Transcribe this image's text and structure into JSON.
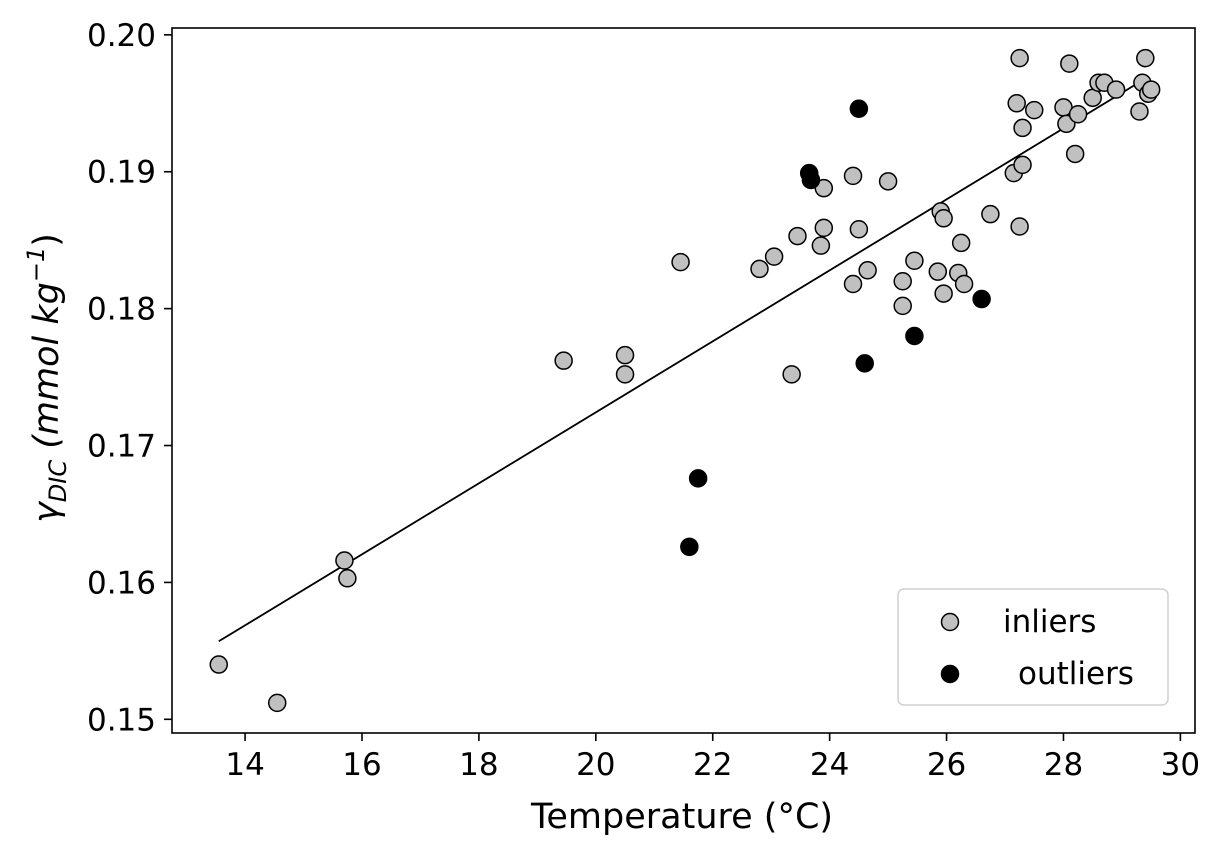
{
  "chart_data": {
    "type": "scatter",
    "xlabel": "Temperature (°C)",
    "ylabel": {
      "symbol": "γ",
      "subscript": "DIC",
      "unit_open": " (mmol kg",
      "unit_exp": "−1",
      "unit_close": ")"
    },
    "xlim": [
      12.75,
      30.25
    ],
    "ylim": [
      0.149,
      0.2005
    ],
    "xticks": [
      14,
      16,
      18,
      20,
      22,
      24,
      26,
      28,
      30
    ],
    "yticks": [
      0.15,
      0.16,
      0.17,
      0.18,
      0.19,
      0.2
    ],
    "ytick_labels": [
      "0.15",
      "0.16",
      "0.17",
      "0.18",
      "0.19",
      "0.20"
    ],
    "grid": false,
    "legend": {
      "position": "bottom-right",
      "entries": [
        "inliers",
        "outliers"
      ]
    },
    "colors": {
      "inliers": "#c0c0c0",
      "outliers": "#000000",
      "edge": "#000000",
      "fit_line": "#000000"
    },
    "fit_line": {
      "x": [
        13.55,
        29.4
      ],
      "y": [
        0.1557,
        0.1968
      ]
    },
    "series": [
      {
        "name": "inliers",
        "points": [
          [
            13.55,
            0.154
          ],
          [
            14.55,
            0.1512
          ],
          [
            15.7,
            0.1616
          ],
          [
            15.75,
            0.1603
          ],
          [
            19.45,
            0.1762
          ],
          [
            20.5,
            0.1766
          ],
          [
            20.5,
            0.1752
          ],
          [
            21.45,
            0.1834
          ],
          [
            22.8,
            0.1829
          ],
          [
            23.05,
            0.1838
          ],
          [
            23.35,
            0.1752
          ],
          [
            23.45,
            0.1853
          ],
          [
            23.85,
            0.1846
          ],
          [
            23.9,
            0.1888
          ],
          [
            23.9,
            0.1859
          ],
          [
            24.4,
            0.1897
          ],
          [
            24.4,
            0.1818
          ],
          [
            24.5,
            0.1858
          ],
          [
            24.65,
            0.1828
          ],
          [
            25.0,
            0.1893
          ],
          [
            25.25,
            0.182
          ],
          [
            25.25,
            0.1802
          ],
          [
            25.45,
            0.1835
          ],
          [
            25.85,
            0.1827
          ],
          [
            25.9,
            0.1871
          ],
          [
            25.95,
            0.1866
          ],
          [
            25.95,
            0.1811
          ],
          [
            26.2,
            0.1826
          ],
          [
            26.25,
            0.1848
          ],
          [
            26.3,
            0.1818
          ],
          [
            26.75,
            0.1869
          ],
          [
            27.15,
            0.1899
          ],
          [
            27.2,
            0.195
          ],
          [
            27.25,
            0.1983
          ],
          [
            27.25,
            0.186
          ],
          [
            27.3,
            0.1905
          ],
          [
            27.3,
            0.1932
          ],
          [
            27.5,
            0.1945
          ],
          [
            28.0,
            0.1947
          ],
          [
            28.05,
            0.1935
          ],
          [
            28.1,
            0.1979
          ],
          [
            28.2,
            0.1913
          ],
          [
            28.25,
            0.1942
          ],
          [
            28.5,
            0.1954
          ],
          [
            28.6,
            0.1965
          ],
          [
            28.7,
            0.1965
          ],
          [
            28.9,
            0.196
          ],
          [
            29.3,
            0.1944
          ],
          [
            29.35,
            0.1965
          ],
          [
            29.4,
            0.1983
          ],
          [
            29.45,
            0.1957
          ],
          [
            29.5,
            0.196
          ]
        ]
      },
      {
        "name": "outliers",
        "points": [
          [
            21.6,
            0.1626
          ],
          [
            21.75,
            0.1676
          ],
          [
            23.65,
            0.1899
          ],
          [
            23.68,
            0.1894
          ],
          [
            24.5,
            0.1946
          ],
          [
            24.6,
            0.176
          ],
          [
            25.45,
            0.178
          ],
          [
            26.6,
            0.1807
          ]
        ]
      }
    ]
  }
}
